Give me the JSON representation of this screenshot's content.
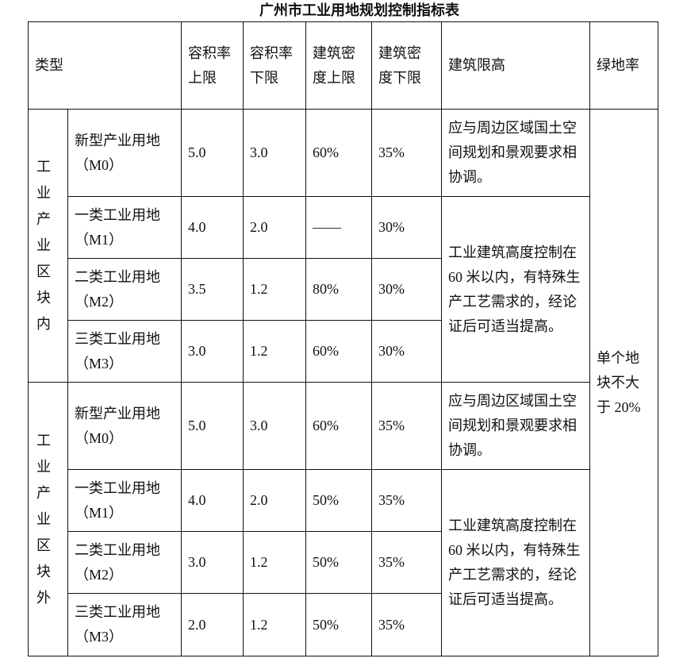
{
  "title": "广州市工业用地规划控制指标表",
  "headers": [
    "类型",
    "容积率上限",
    "容积率下限",
    "建筑密度上限",
    "建筑密度下限",
    "建筑限高",
    "绿地率"
  ],
  "groups": [
    {
      "label": "工业产业区块内",
      "rows": [
        {
          "type": "新型产业用地（M0）",
          "far_max": "5.0",
          "far_min": "3.0",
          "density_max": "60%",
          "density_min": "35%"
        },
        {
          "type": "一类工业用地（M1）",
          "far_max": "4.0",
          "far_min": "2.0",
          "density_max": "——",
          "density_min": "30%"
        },
        {
          "type": "二类工业用地（M2）",
          "far_max": "3.5",
          "far_min": "1.2",
          "density_max": "80%",
          "density_min": "30%"
        },
        {
          "type": "三类工业用地（M3）",
          "far_max": "3.0",
          "far_min": "1.2",
          "density_max": "60%",
          "density_min": "30%"
        }
      ],
      "height_m0": "应与周边区域国土空间规划和景观要求相协调。",
      "height_other": "工业建筑高度控制在 60 米以内，有特殊生产工艺需求的，经论证后可适当提高。"
    },
    {
      "label": "工业产业区块外",
      "rows": [
        {
          "type": "新型产业用地（M0）",
          "far_max": "5.0",
          "far_min": "3.0",
          "density_max": "60%",
          "density_min": "35%"
        },
        {
          "type": "一类工业用地（M1）",
          "far_max": "4.0",
          "far_min": "2.0",
          "density_max": "50%",
          "density_min": "35%"
        },
        {
          "type": "二类工业用地（M2）",
          "far_max": "3.0",
          "far_min": "1.2",
          "density_max": "50%",
          "density_min": "35%"
        },
        {
          "type": "三类工业用地（M3）",
          "far_max": "2.0",
          "far_min": "1.2",
          "density_max": "50%",
          "density_min": "35%"
        }
      ],
      "height_m0": "应与周边区域国土空间规划和景观要求相协调。",
      "height_other": "工业建筑高度控制在 60 米以内，有特殊生产工艺需求的，经论证后可适当提高。"
    }
  ],
  "green_rate": "单个地块不大于 20%"
}
